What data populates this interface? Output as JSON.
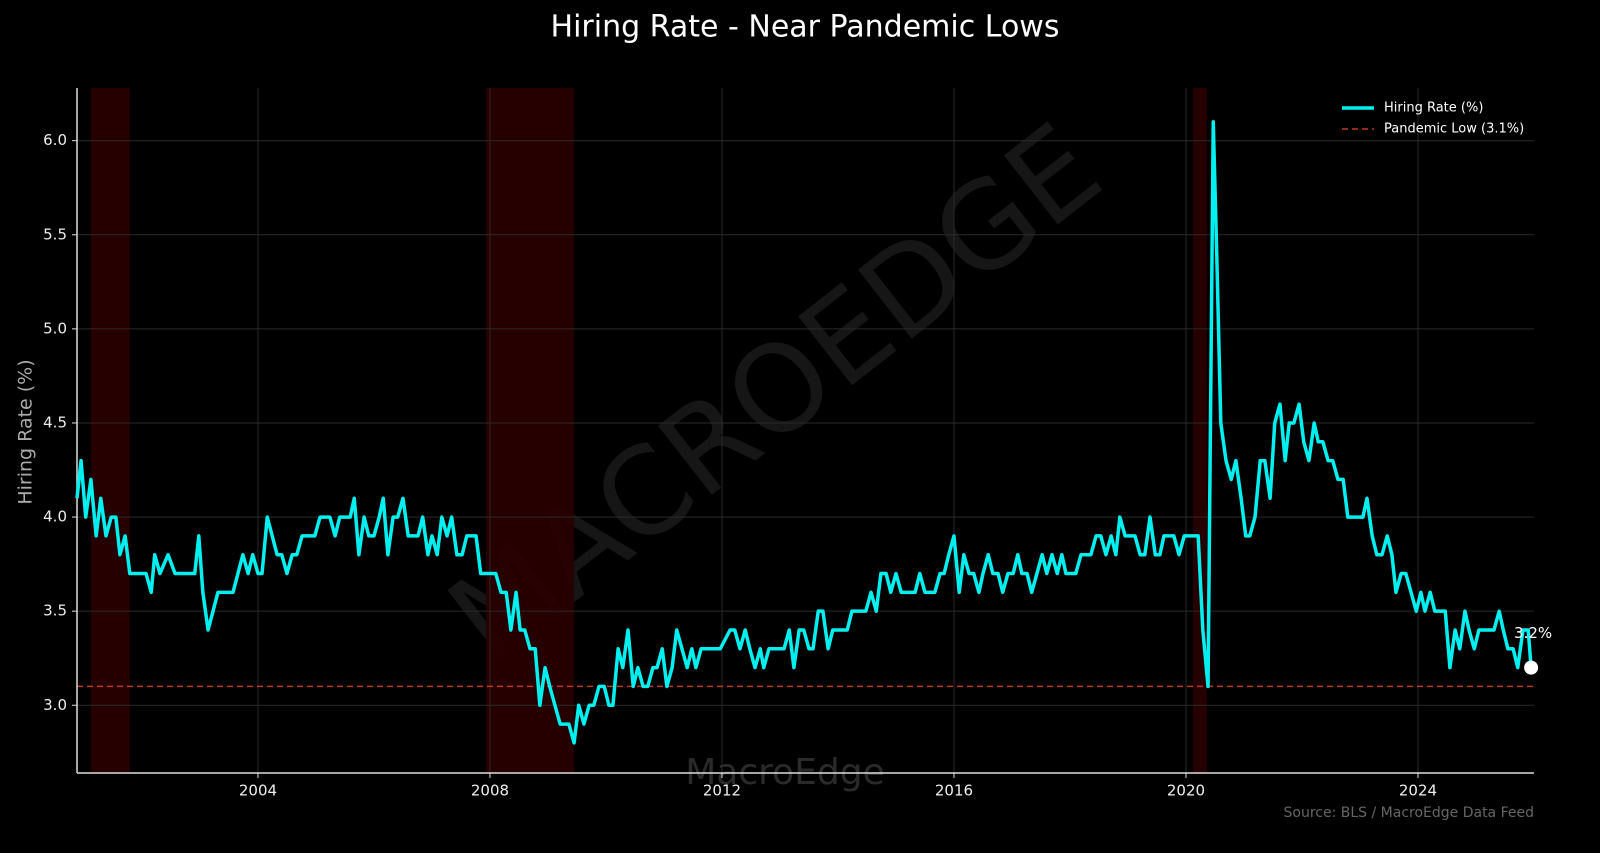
{
  "chart_data": {
    "type": "line",
    "title": "Hiring Rate - Near Pandemic Lows",
    "y_label": "Hiring Rate (%)",
    "source": "Source: BLS / MacroEdge Data Feed",
    "watermark": "MACROEDGE",
    "watermark_bottom": "MacroEdge",
    "xlim": [
      2000.88,
      2026.0
    ],
    "xticks": [
      2004,
      2008,
      2012,
      2016,
      2020,
      2024
    ],
    "ylim": [
      2.64,
      6.28
    ],
    "yticks": [
      {
        "value": 3,
        "label": "3.0"
      },
      3.5,
      {
        "value": 4,
        "label": "4.0"
      },
      4.5,
      {
        "value": 5,
        "label": "5.0"
      },
      5.5,
      {
        "value": 6,
        "label": "6.0"
      }
    ],
    "grid": true,
    "legend": "upper right",
    "recessions": [
      [
        2001.12,
        2001.79
      ],
      [
        2007.93,
        2009.45
      ],
      [
        2020.12,
        2020.36
      ]
    ],
    "recession_color": "#2a0000",
    "reference_lines": [
      {
        "name": "Pandemic Low (3.1%)",
        "value": 3.1,
        "color": "#c0391b"
      }
    ],
    "x": [
      2000.88,
      2000.95,
      2001.03,
      2001.12,
      2001.21,
      2001.29,
      2001.38,
      2001.47,
      2001.55,
      2001.62,
      2001.71,
      2001.79,
      2002.07,
      2002.16,
      2002.22,
      2002.31,
      2002.45,
      2002.57,
      2002.91,
      2002.98,
      2003.05,
      2003.14,
      2003.31,
      2003.57,
      2003.74,
      2003.83,
      2003.91,
      2004,
      2004.07,
      2004.16,
      2004.33,
      2004.41,
      2004.5,
      2004.59,
      2004.67,
      2004.76,
      2004.98,
      2005.07,
      2005.24,
      2005.33,
      2005.41,
      2005.59,
      2005.66,
      2005.74,
      2005.83,
      2005.91,
      2006,
      2006.09,
      2006.16,
      2006.24,
      2006.33,
      2006.41,
      2006.5,
      2006.59,
      2006.76,
      2006.84,
      2006.93,
      2007,
      2007.09,
      2007.17,
      2007.26,
      2007.34,
      2007.43,
      2007.52,
      2007.6,
      2007.76,
      2007.84,
      2008.1,
      2008.19,
      2008.28,
      2008.36,
      2008.45,
      2008.52,
      2008.6,
      2008.69,
      2008.78,
      2008.86,
      2008.95,
      2009.03,
      2009.12,
      2009.21,
      2009.36,
      2009.45,
      2009.53,
      2009.62,
      2009.71,
      2009.79,
      2009.88,
      2009.97,
      2010.05,
      2010.12,
      2010.21,
      2010.29,
      2010.38,
      2010.47,
      2010.55,
      2010.64,
      2010.72,
      2010.81,
      2010.88,
      2010.97,
      2011.05,
      2011.14,
      2011.22,
      2011.31,
      2011.4,
      2011.48,
      2011.55,
      2011.64,
      2011.97,
      2012.14,
      2012.22,
      2012.31,
      2012.4,
      2012.48,
      2012.57,
      2012.66,
      2012.72,
      2012.81,
      2013.07,
      2013.16,
      2013.24,
      2013.33,
      2013.41,
      2013.5,
      2013.57,
      2013.66,
      2013.74,
      2013.83,
      2013.91,
      2014.16,
      2014.24,
      2014.48,
      2014.57,
      2014.66,
      2014.74,
      2014.83,
      2014.91,
      2015,
      2015.09,
      2015.33,
      2015.41,
      2015.5,
      2015.67,
      2015.76,
      2015.83,
      2015.91,
      2016,
      2016.09,
      2016.17,
      2016.26,
      2016.34,
      2016.43,
      2016.5,
      2016.59,
      2016.67,
      2016.76,
      2016.84,
      2016.93,
      2017.02,
      2017.1,
      2017.17,
      2017.26,
      2017.34,
      2017.43,
      2017.52,
      2017.6,
      2017.69,
      2017.78,
      2017.86,
      2017.93,
      2018.1,
      2018.19,
      2018.36,
      2018.45,
      2018.53,
      2018.62,
      2018.71,
      2018.79,
      2018.86,
      2018.95,
      2019.12,
      2019.21,
      2019.29,
      2019.38,
      2019.47,
      2019.55,
      2019.62,
      2019.79,
      2019.88,
      2019.97,
      2020.21,
      2020.29,
      2020.38,
      2020.47,
      2020.53,
      2020.6,
      2020.69,
      2020.78,
      2020.86,
      2020.95,
      2021.03,
      2021.1,
      2021.19,
      2021.28,
      2021.36,
      2021.45,
      2021.53,
      2021.62,
      2021.71,
      2021.78,
      2021.86,
      2021.95,
      2022.03,
      2022.12,
      2022.21,
      2022.28,
      2022.36,
      2022.45,
      2022.53,
      2022.62,
      2022.71,
      2022.79,
      2023.05,
      2023.12,
      2023.21,
      2023.29,
      2023.38,
      2023.47,
      2023.55,
      2023.62,
      2023.71,
      2023.79,
      2023.88,
      2023.97,
      2024.05,
      2024.12,
      2024.21,
      2024.29,
      2024.47,
      2024.55,
      2024.64,
      2024.72,
      2024.81,
      2024.88,
      2024.97,
      2025.05,
      2025.31,
      2025.4,
      2025.47,
      2025.55,
      2025.64,
      2025.72,
      2025.81,
      2025.9,
      2025.95
    ],
    "series": [
      {
        "name": "Hiring Rate (%)",
        "color": "#00f0f0",
        "end_label": "3.2%",
        "values": [
          4.1,
          4.3,
          4.0,
          4.2,
          3.9,
          4.1,
          3.9,
          4.0,
          4.0,
          3.8,
          3.9,
          3.7,
          3.7,
          3.6,
          3.8,
          3.7,
          3.8,
          3.7,
          3.7,
          3.9,
          3.6,
          3.4,
          3.6,
          3.6,
          3.8,
          3.7,
          3.8,
          3.7,
          3.7,
          4.0,
          3.8,
          3.8,
          3.7,
          3.8,
          3.8,
          3.9,
          3.9,
          4.0,
          4.0,
          3.9,
          4.0,
          4.0,
          4.1,
          3.8,
          4.0,
          3.9,
          3.9,
          4.0,
          4.1,
          3.8,
          4.0,
          4.0,
          4.1,
          3.9,
          3.9,
          4.0,
          3.8,
          3.9,
          3.8,
          4.0,
          3.9,
          4.0,
          3.8,
          3.8,
          3.9,
          3.9,
          3.7,
          3.7,
          3.6,
          3.6,
          3.4,
          3.6,
          3.4,
          3.4,
          3.3,
          3.3,
          3.0,
          3.2,
          3.1,
          3.0,
          2.9,
          2.9,
          2.8,
          3.0,
          2.9,
          3.0,
          3.0,
          3.1,
          3.1,
          3.0,
          3.0,
          3.3,
          3.2,
          3.4,
          3.1,
          3.2,
          3.1,
          3.1,
          3.2,
          3.2,
          3.3,
          3.1,
          3.2,
          3.4,
          3.3,
          3.2,
          3.3,
          3.2,
          3.3,
          3.3,
          3.4,
          3.4,
          3.3,
          3.4,
          3.3,
          3.2,
          3.3,
          3.2,
          3.3,
          3.3,
          3.4,
          3.2,
          3.4,
          3.4,
          3.3,
          3.3,
          3.5,
          3.5,
          3.3,
          3.4,
          3.4,
          3.5,
          3.5,
          3.6,
          3.5,
          3.7,
          3.7,
          3.6,
          3.7,
          3.6,
          3.6,
          3.7,
          3.6,
          3.6,
          3.7,
          3.7,
          3.8,
          3.9,
          3.6,
          3.8,
          3.7,
          3.7,
          3.6,
          3.7,
          3.8,
          3.7,
          3.7,
          3.6,
          3.7,
          3.7,
          3.8,
          3.7,
          3.7,
          3.6,
          3.7,
          3.8,
          3.7,
          3.8,
          3.7,
          3.8,
          3.7,
          3.7,
          3.8,
          3.8,
          3.9,
          3.9,
          3.8,
          3.9,
          3.8,
          4.0,
          3.9,
          3.9,
          3.8,
          3.8,
          4.0,
          3.8,
          3.8,
          3.9,
          3.9,
          3.8,
          3.9,
          3.9,
          3.4,
          3.1,
          6.1,
          5.4,
          4.5,
          4.3,
          4.2,
          4.3,
          4.1,
          3.9,
          3.9,
          4.0,
          4.3,
          4.3,
          4.1,
          4.5,
          4.6,
          4.3,
          4.5,
          4.5,
          4.6,
          4.4,
          4.3,
          4.5,
          4.4,
          4.4,
          4.3,
          4.3,
          4.2,
          4.2,
          4.0,
          4.0,
          4.1,
          3.9,
          3.8,
          3.8,
          3.9,
          3.8,
          3.6,
          3.7,
          3.7,
          3.6,
          3.5,
          3.6,
          3.5,
          3.6,
          3.5,
          3.5,
          3.2,
          3.4,
          3.3,
          3.5,
          3.4,
          3.3,
          3.4,
          3.4,
          3.5,
          3.4,
          3.3,
          3.3,
          3.2,
          3.4,
          3.4,
          3.2
        ]
      }
    ]
  }
}
